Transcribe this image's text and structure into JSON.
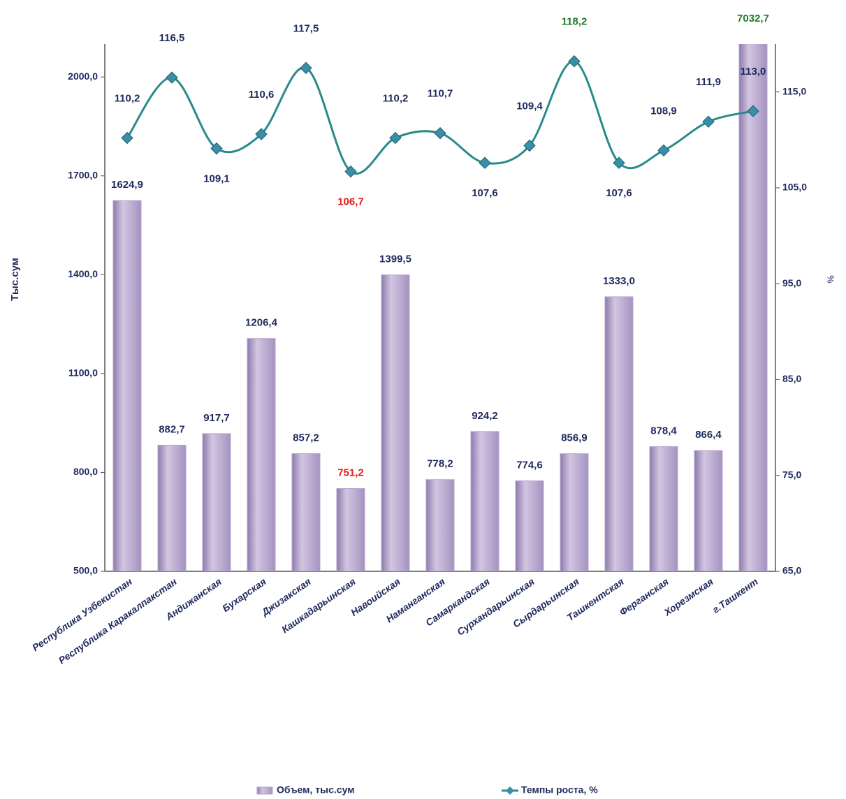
{
  "chart_data": {
    "type": "bar-line",
    "categories": [
      "Республика Узбекистан",
      "Республика Каракалпакстан",
      "Андижанская",
      "Бухарская",
      "Джизакская",
      "Кашкадарьинская",
      "Навоийская",
      "Наманганская",
      "Самаркандская",
      "Сурхандарьинская",
      "Сырдарьинская",
      "Ташкентская",
      "Ферганская",
      "Хорезмская",
      "г.Ташкент"
    ],
    "y_label": "Тыс.сум",
    "y2_label": "%",
    "ylim": [
      500,
      2100
    ],
    "yticks": [
      {
        "value": 500,
        "label": "500,0"
      },
      {
        "value": 800,
        "label": "800,0"
      },
      {
        "value": 1100,
        "label": "1100,0"
      },
      {
        "value": 1400,
        "label": "1400,0"
      },
      {
        "value": 1700,
        "label": "1700,0"
      },
      {
        "value": 2000,
        "label": "2000,0"
      }
    ],
    "y2lim": [
      65,
      120
    ],
    "y2ticks": [
      {
        "value": 65,
        "label": "65,0"
      },
      {
        "value": 75,
        "label": "75,0"
      },
      {
        "value": 85,
        "label": "85,0"
      },
      {
        "value": 95,
        "label": "95,0"
      },
      {
        "value": 105,
        "label": "105,0"
      },
      {
        "value": 115,
        "label": "115,0"
      }
    ],
    "series": [
      {
        "name": "Объем, тыс.сум",
        "type": "bar",
        "color": "#b6a4cf",
        "values": [
          1624.9,
          882.7,
          917.7,
          1206.4,
          857.2,
          751.2,
          1399.5,
          778.2,
          924.2,
          774.6,
          856.9,
          1333.0,
          878.4,
          866.4,
          7032.7
        ],
        "value_labels": [
          "1624,9",
          "882,7",
          "917,7",
          "1206,4",
          "857,2",
          "751,2",
          "1399,5",
          "778,2",
          "924,2",
          "774,6",
          "856,9",
          "1333,0",
          "878,4",
          "866,4",
          "7032,7"
        ],
        "value_label_colors": [
          "#1f2a5c",
          "#1f2a5c",
          "#1f2a5c",
          "#1f2a5c",
          "#1f2a5c",
          "#e02020",
          "#1f2a5c",
          "#1f2a5c",
          "#1f2a5c",
          "#1f2a5c",
          "#1f2a5c",
          "#1f2a5c",
          "#1f2a5c",
          "#1f2a5c",
          "#1f7a2a"
        ]
      },
      {
        "name": "Темпы  роста, %",
        "type": "line",
        "axis": "y2",
        "color": "#2a8a8a",
        "marker_color": "#3a8fa8",
        "values": [
          110.2,
          116.5,
          109.1,
          110.6,
          117.5,
          106.7,
          110.2,
          110.7,
          107.6,
          109.4,
          118.2,
          107.6,
          108.9,
          111.9,
          113.0
        ],
        "value_labels": [
          "110,2",
          "116,5",
          "109,1",
          "110,6",
          "117,5",
          "106,7",
          "110,2",
          "110,7",
          "107,6",
          "109,4",
          "118,2",
          "107,6",
          "108,9",
          "111,9",
          "113,0"
        ],
        "value_label_colors": [
          "#1f2a5c",
          "#1f2a5c",
          "#1f2a5c",
          "#1f2a5c",
          "#1f2a5c",
          "#e02020",
          "#1f2a5c",
          "#1f2a5c",
          "#1f2a5c",
          "#1f2a5c",
          "#1f7a2a",
          "#1f2a5c",
          "#1f2a5c",
          "#1f2a5c",
          "#1f2a5c"
        ]
      }
    ]
  }
}
